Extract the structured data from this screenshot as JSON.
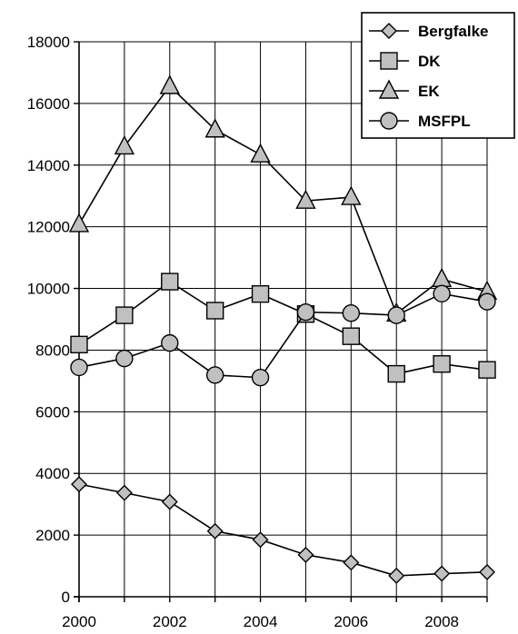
{
  "chart_data": {
    "type": "line",
    "title": "",
    "xlabel": "",
    "ylabel": "",
    "x": [
      2000,
      2001,
      2002,
      2003,
      2004,
      2005,
      2006,
      2007,
      2008,
      2009
    ],
    "xlim": [
      2000,
      2009
    ],
    "ylim": [
      0,
      18000
    ],
    "x_ticks": [
      2000,
      2002,
      2004,
      2006,
      2008
    ],
    "y_ticks": [
      0,
      2000,
      4000,
      6000,
      8000,
      10000,
      12000,
      14000,
      16000,
      18000
    ],
    "grid": true,
    "legend": "top-right",
    "series": [
      {
        "name": "Bergfalke",
        "marker": "diamond",
        "values": [
          3650,
          3370,
          3080,
          2130,
          1850,
          1360,
          1110,
          680,
          750,
          800
        ]
      },
      {
        "name": "DK",
        "marker": "square",
        "values": [
          8180,
          9130,
          10220,
          9280,
          9820,
          9170,
          8450,
          7230,
          7550,
          7360
        ]
      },
      {
        "name": "EK",
        "marker": "triangle",
        "values": [
          12080,
          14600,
          16560,
          15150,
          14340,
          12840,
          12960,
          9180,
          10300,
          9890
        ]
      },
      {
        "name": "MSFPL",
        "marker": "circle",
        "values": [
          7440,
          7730,
          8230,
          7190,
          7110,
          9230,
          9200,
          9130,
          9830,
          9570
        ]
      }
    ]
  }
}
